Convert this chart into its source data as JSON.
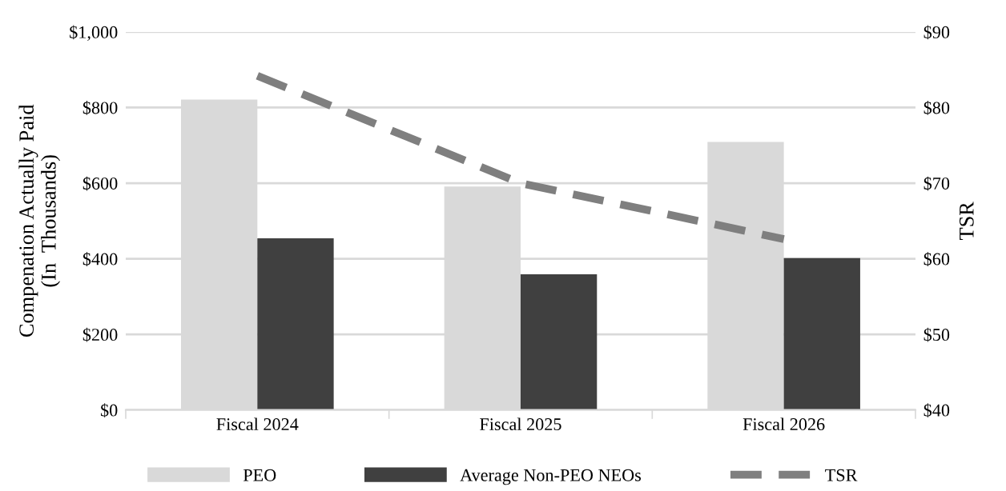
{
  "chart_data": {
    "type": "bar",
    "ylabel": "Compenation Actually Paid\n(In  Thousands)",
    "y2label": "TSR",
    "categories": [
      "Fiscal 2024",
      "Fiscal 2025",
      "Fiscal 2026"
    ],
    "series": [
      {
        "name": "PEO",
        "color": "#d9d9d9",
        "values": [
          821,
          591,
          709
        ]
      },
      {
        "name": "Average Non-PEO NEOs",
        "color": "#404040",
        "values": [
          454,
          359,
          402
        ]
      },
      {
        "name": "TSR",
        "type": "line",
        "axis": "y2",
        "color": "#7f7f7f",
        "line_style": "dashed",
        "values": [
          84.2,
          70.0,
          62.6
        ]
      }
    ],
    "ylim": [
      0,
      1000
    ],
    "yticks": [
      {
        "value": 0,
        "label": "$0"
      },
      {
        "value": 200,
        "label": "$200"
      },
      {
        "value": 400,
        "label": "$400"
      },
      {
        "value": 600,
        "label": "$600"
      },
      {
        "value": 800,
        "label": "$800"
      },
      {
        "value": 1000,
        "label": "$1,000"
      }
    ],
    "y2lim": [
      40,
      90
    ],
    "y2ticks": [
      {
        "value": 40,
        "label": "$40"
      },
      {
        "value": 50,
        "label": "$50"
      },
      {
        "value": 60,
        "label": "$60"
      },
      {
        "value": 70,
        "label": "$70"
      },
      {
        "value": 80,
        "label": "$80"
      },
      {
        "value": 90,
        "label": "$90"
      }
    ],
    "grid": "y",
    "legend": "bottom"
  }
}
